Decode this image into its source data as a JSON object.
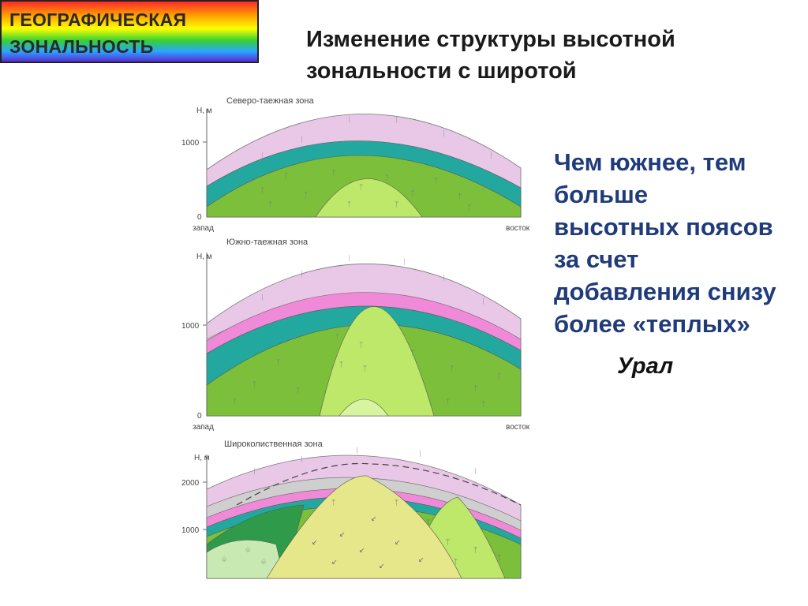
{
  "badge": {
    "line1": "ГЕОГРАФИЧЕСКАЯ",
    "line2": "ЗОНАЛЬНОСТЬ"
  },
  "title": {
    "line1": "Изменение структуры высотной",
    "line2": "зональности с широтой"
  },
  "explanation": {
    "lines": [
      "Чем южнее, тем",
      "больше",
      "высотных поясов",
      "за счет",
      "добавления снизу",
      "более «теплых»"
    ]
  },
  "region": "Урал",
  "panels": [
    {
      "title": "Северо-таежная зона",
      "y_unit": "Н, м",
      "ticks": [
        "1000",
        "0"
      ],
      "west": "запад",
      "east": "восток"
    },
    {
      "title": "Южно-таежная зона",
      "y_unit": "Н, м",
      "ticks": [
        "1000",
        "0"
      ],
      "west": "запад",
      "east": "восток"
    },
    {
      "title": "Широколиственная зона",
      "y_unit": "Н, м",
      "ticks": [
        "2000",
        "1000"
      ]
    }
  ],
  "colors": {
    "tundra": "#e9c7e6",
    "pink": "#f08ad8",
    "grey": "#cfcfcf",
    "teal": "#23a8a0",
    "forest": "#7cbf3a",
    "light_forest": "#bde86a",
    "dark_green": "#2e9a4a",
    "yellow": "#e6e68a",
    "pale_green": "#c9e9b2"
  }
}
